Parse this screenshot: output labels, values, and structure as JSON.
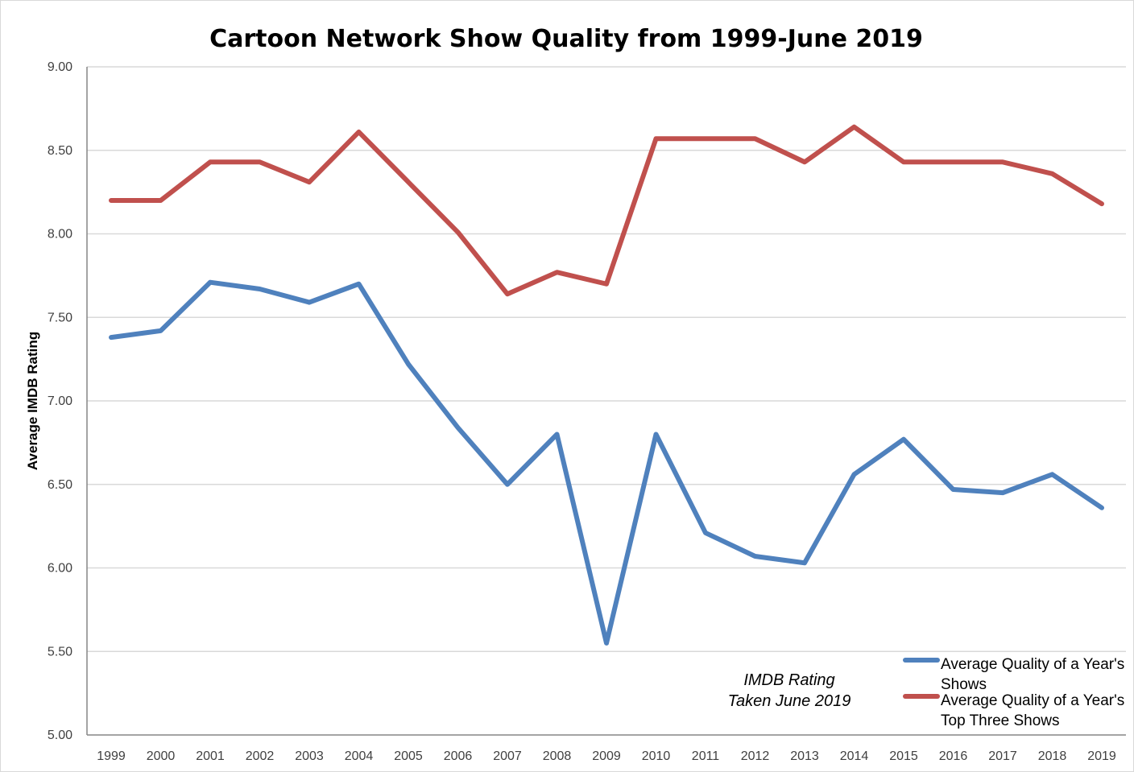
{
  "chart_data": {
    "type": "line",
    "title": "Cartoon Network Show Quality from 1999-June 2019",
    "xlabel": "",
    "ylabel": "Average IMDB Rating",
    "ylim": [
      5.0,
      9.0
    ],
    "yticks": [
      "5.00",
      "5.50",
      "6.00",
      "6.50",
      "7.00",
      "7.50",
      "8.00",
      "8.50",
      "9.00"
    ],
    "grid": true,
    "legend_position": "bottom-right",
    "annotation": [
      "IMDB Rating",
      "Taken June 2019"
    ],
    "categories": [
      "1999",
      "2000",
      "2001",
      "2002",
      "2003",
      "2004",
      "2005",
      "2006",
      "2007",
      "2008",
      "2009",
      "2010",
      "2011",
      "2012",
      "2013",
      "2014",
      "2015",
      "2016",
      "2017",
      "2018",
      "2019"
    ],
    "series": [
      {
        "name": "Average Quality of a Year's Shows",
        "legend_lines": [
          "Average Quality of a Year's",
          "Shows"
        ],
        "color": "#4f81bd",
        "values": [
          7.38,
          7.42,
          7.71,
          7.67,
          7.59,
          7.7,
          7.22,
          6.84,
          6.5,
          6.8,
          5.55,
          6.8,
          6.21,
          6.07,
          6.03,
          6.56,
          6.77,
          6.47,
          6.45,
          6.56,
          6.36
        ]
      },
      {
        "name": "Average Quality of a Year's Top Three Shows",
        "legend_lines": [
          "Average Quality of a Year's",
          "Top Three Shows"
        ],
        "color": "#c0504d",
        "values": [
          8.2,
          8.2,
          8.43,
          8.43,
          8.31,
          8.61,
          8.31,
          8.01,
          7.64,
          7.77,
          7.7,
          8.57,
          8.57,
          8.57,
          8.43,
          8.64,
          8.43,
          8.43,
          8.43,
          8.36,
          8.18
        ]
      }
    ]
  }
}
